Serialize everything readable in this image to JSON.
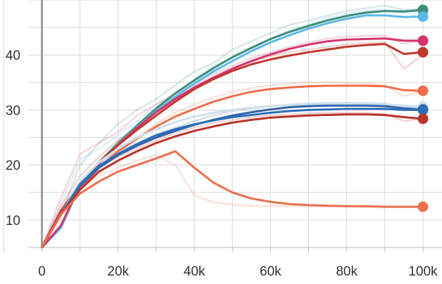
{
  "chart_data": {
    "type": "line",
    "title": "",
    "xlabel": "",
    "ylabel": "",
    "xlim": [
      -11000,
      105000
    ],
    "ylim": [
      5,
      50
    ],
    "x_ticks": [
      0,
      20000,
      40000,
      60000,
      80000,
      100000
    ],
    "x_tick_labels": [
      "0",
      "20k",
      "40k",
      "60k",
      "80k",
      "100k"
    ],
    "y_ticks": [
      10,
      20,
      30,
      40
    ],
    "y_tick_labels": [
      "10",
      "20",
      "30",
      "40"
    ],
    "grid": true,
    "legend": "none",
    "x": [
      0,
      5000,
      10000,
      15000,
      20000,
      25000,
      30000,
      35000,
      40000,
      45000,
      50000,
      55000,
      60000,
      65000,
      70000,
      75000,
      80000,
      85000,
      90000,
      95000,
      100000
    ],
    "series": [
      {
        "color": "#3a8f7c",
        "values": [
          5,
          8.6,
          16.2,
          20.5,
          24.0,
          27.2,
          30.3,
          33.0,
          35.4,
          37.6,
          39.6,
          41.3,
          42.9,
          44.2,
          45.3,
          46.3,
          47.1,
          47.7,
          48.0,
          47.9,
          48.2
        ],
        "shadow": [
          5,
          11,
          20,
          24,
          27.5,
          30,
          32,
          34.5,
          37,
          38.5,
          41,
          42.5,
          44,
          45.5,
          46.2,
          47.2,
          48,
          48.5,
          49,
          48.2,
          48.5
        ]
      },
      {
        "color": "#5cb8e6",
        "values": [
          5,
          8.6,
          16.2,
          20.4,
          23.8,
          26.9,
          29.8,
          32.4,
          34.8,
          37.0,
          38.9,
          40.7,
          42.3,
          43.6,
          44.8,
          45.8,
          46.6,
          47.2,
          47.2,
          46.9,
          47.0
        ],
        "shadow": [
          5,
          13,
          21,
          23,
          25.5,
          28,
          31,
          33,
          35.5,
          38,
          39.5,
          41.5,
          43,
          44.5,
          45.5,
          46.8,
          47.5,
          48,
          48.2,
          47.5,
          47.8
        ]
      },
      {
        "color": "#d6336c",
        "values": [
          5,
          9.0,
          16.3,
          20.3,
          23.7,
          26.8,
          29.6,
          32.0,
          34.1,
          35.9,
          37.5,
          38.9,
          40.1,
          41.1,
          41.9,
          42.5,
          42.8,
          42.9,
          43.0,
          42.6,
          42.6
        ],
        "shadow": [
          5,
          14,
          22,
          24,
          26,
          29,
          31,
          33,
          34.5,
          36.5,
          38,
          39.5,
          40.5,
          41.5,
          42.3,
          43,
          43.3,
          43.5,
          43.5,
          42,
          42.8
        ]
      },
      {
        "color": "#c0392b",
        "values": [
          5,
          11.6,
          16.6,
          20.5,
          23.6,
          26.4,
          29.0,
          31.5,
          33.8,
          35.6,
          37.1,
          38.3,
          39.2,
          39.9,
          40.5,
          41.0,
          41.5,
          41.8,
          42.0,
          40.2,
          40.5
        ],
        "shadow": [
          5,
          12.5,
          18,
          21.5,
          24.5,
          27,
          29.5,
          32,
          34,
          35.8,
          37.5,
          38.8,
          39.8,
          40.5,
          41,
          41.5,
          42,
          42.2,
          42.3,
          37.5,
          40
        ]
      },
      {
        "color": "#ee6e4a",
        "values": [
          5,
          11.0,
          15.6,
          19.5,
          22.5,
          24.8,
          27.0,
          28.8,
          30.2,
          31.5,
          32.5,
          33.3,
          33.8,
          34.1,
          34.3,
          34.4,
          34.4,
          34.4,
          34.3,
          33.6,
          33.5
        ],
        "shadow": [
          5,
          12,
          16.5,
          20,
          22.5,
          25,
          27.5,
          29.5,
          31,
          32.3,
          33.3,
          34,
          34.5,
          34.8,
          35,
          35,
          34.9,
          34.8,
          34.5,
          32.5,
          33.5
        ]
      },
      {
        "color": "#cfe0ef",
        "values": [
          5,
          11.0,
          17.0,
          20.5,
          23.0,
          25.0,
          26.5,
          27.8,
          28.8,
          29.5,
          30.0,
          30.4,
          30.7,
          30.9,
          31.0,
          31.1,
          31.1,
          31.1,
          31.0,
          30.8,
          30.6
        ]
      },
      {
        "color": "#3366aa",
        "values": [
          5,
          11.0,
          16.2,
          19.5,
          21.8,
          23.5,
          25.0,
          26.2,
          27.3,
          28.2,
          29.0,
          29.6,
          30.1,
          30.5,
          30.7,
          30.8,
          30.8,
          30.8,
          30.7,
          30.3,
          30.1
        ],
        "shadow": [
          5,
          11.5,
          17,
          20.5,
          22.5,
          24,
          25.5,
          26.8,
          28,
          29,
          29.8,
          30.3,
          30.7,
          31,
          31.2,
          31.3,
          31.3,
          31.3,
          31.2,
          30.5,
          30.6
        ]
      },
      {
        "color": "#2a6fb8",
        "values": [
          5,
          11.0,
          16.5,
          19.8,
          22.0,
          23.8,
          25.4,
          26.5,
          27.4,
          28.1,
          28.7,
          29.1,
          29.5,
          29.8,
          30.0,
          30.1,
          30.2,
          30.2,
          30.2,
          30.0,
          30.0
        ]
      },
      {
        "color": "#b8332a",
        "values": [
          5,
          11.0,
          15.5,
          18.8,
          20.8,
          22.5,
          24.0,
          25.2,
          26.2,
          27.0,
          27.7,
          28.2,
          28.6,
          28.8,
          29.0,
          29.1,
          29.2,
          29.2,
          29.1,
          28.7,
          28.4
        ],
        "shadow": [
          5,
          11.5,
          16,
          19.5,
          21.5,
          23,
          24.5,
          25.8,
          26.8,
          27.6,
          28.2,
          28.7,
          29,
          29.2,
          29.4,
          29.5,
          29.5,
          29.5,
          29.2,
          28,
          28.5
        ]
      },
      {
        "color": "#ea7050",
        "values": [
          5,
          11.0,
          14.8,
          17.0,
          18.8,
          20.0,
          21.2,
          22.5,
          19.5,
          16.8,
          15.0,
          13.9,
          13.3,
          12.9,
          12.7,
          12.6,
          12.5,
          12.5,
          12.4,
          12.4,
          12.4
        ],
        "shadow": [
          5,
          12,
          16,
          18,
          19.5,
          20.8,
          21.8,
          20,
          14.5,
          13.2,
          12.8,
          12.6,
          12.5,
          12.5,
          12.4,
          12.4,
          12.4,
          12.3,
          12.3,
          12.3,
          12.3
        ]
      }
    ]
  }
}
